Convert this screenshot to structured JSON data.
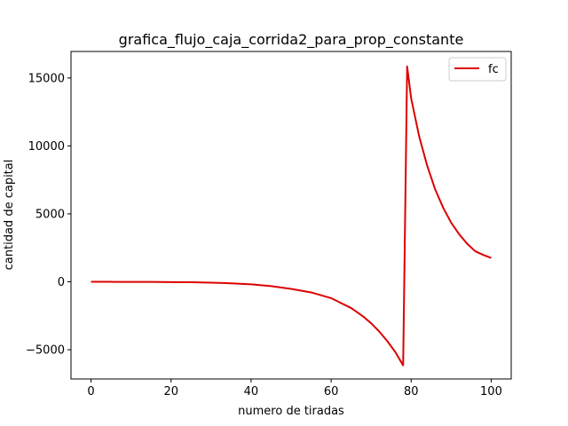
{
  "chart_data": {
    "type": "line",
    "title": "grafica_flujo_caja_corrida2_para_prop_constante",
    "xlabel": "numero de tiradas",
    "ylabel": "cantidad de capital",
    "xlim": [
      -5,
      105
    ],
    "ylim": [
      -7150,
      16950
    ],
    "xticks": [
      0,
      20,
      40,
      60,
      80,
      100
    ],
    "yticks": [
      -5000,
      0,
      5000,
      10000,
      15000
    ],
    "xtick_labels": [
      "0",
      "20",
      "40",
      "60",
      "80",
      "100"
    ],
    "ytick_labels": [
      "−5000",
      "0",
      "5000",
      "10000",
      "15000"
    ],
    "grid": false,
    "legend_position": "top-right",
    "series": [
      {
        "name": "fc",
        "color": "#dd0000",
        "x": [
          0,
          5,
          10,
          15,
          20,
          25,
          30,
          35,
          40,
          45,
          50,
          55,
          60,
          65,
          68,
          70,
          72,
          74,
          76,
          78,
          79,
          80,
          82,
          84,
          86,
          88,
          90,
          92,
          94,
          96,
          98,
          100
        ],
        "y": [
          0,
          -2,
          -5,
          -10,
          -20,
          -35,
          -65,
          -110,
          -185,
          -320,
          -520,
          -780,
          -1200,
          -1930,
          -2550,
          -3050,
          -3650,
          -4350,
          -5150,
          -6150,
          15850,
          13500,
          10700,
          8550,
          6800,
          5450,
          4350,
          3500,
          2800,
          2250,
          1980,
          1750
        ]
      }
    ]
  }
}
